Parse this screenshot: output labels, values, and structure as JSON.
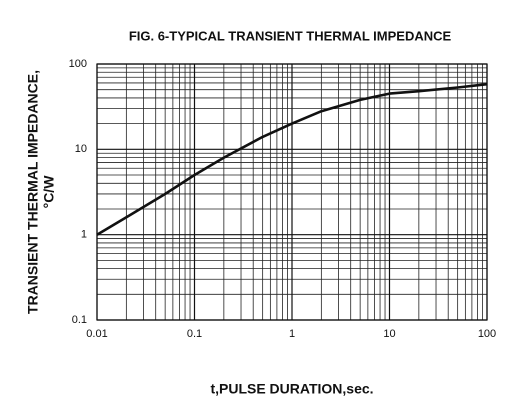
{
  "chart_data": {
    "type": "line",
    "title": "FIG. 6-TYPICAL TRANSIENT THERMAL IMPEDANCE",
    "x_label": "t,PULSE DURATION,sec.",
    "y_label": [
      "TRANSIENT THERMAL IMPEDANCE,",
      "°C/W"
    ],
    "x": [
      0.01,
      0.02,
      0.05,
      0.1,
      0.2,
      0.5,
      1,
      2,
      5,
      10,
      20,
      50,
      100
    ],
    "values": [
      1,
      1.6,
      3,
      5,
      8,
      14,
      20,
      28,
      38,
      45,
      48,
      53,
      58
    ],
    "color": "#111111",
    "log_x": true,
    "log_y": true,
    "grid": true,
    "minor_grid": true,
    "xlim": [
      0.01,
      100
    ],
    "xticks": [
      0.01,
      0.1,
      1,
      10,
      100
    ],
    "ylim": [
      0.1,
      100
    ],
    "yticks": [
      0.1,
      1,
      10,
      100
    ]
  }
}
